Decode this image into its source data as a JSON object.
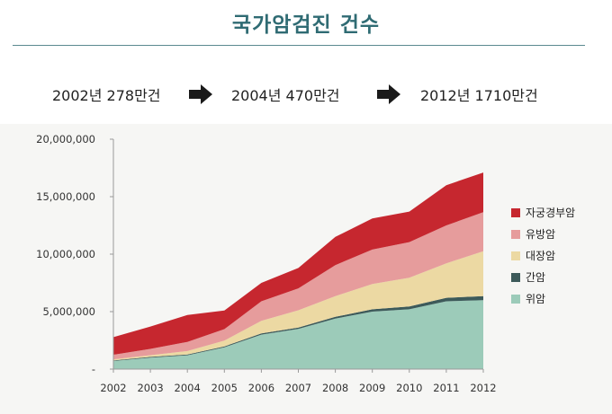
{
  "page": {
    "title": "국가암검진 건수"
  },
  "summary": {
    "items": [
      "2002년 278만건",
      "2004년 470만건",
      "2012년 1710만건"
    ]
  },
  "chart_data": {
    "type": "area",
    "stacked": true,
    "categories": [
      "2002",
      "2003",
      "2004",
      "2005",
      "2006",
      "2007",
      "2008",
      "2009",
      "2010",
      "2011",
      "2012"
    ],
    "ylim": [
      0,
      20000000
    ],
    "ytick_labels": [
      "-",
      "5,000,000",
      "10,000,000",
      "15,000,000",
      "20,000,000"
    ],
    "grid": false,
    "legend_position": "right",
    "series": [
      {
        "name": "위암",
        "color": "#9ccbb9",
        "values": [
          700000,
          1000000,
          1200000,
          1900000,
          3000000,
          3500000,
          4400000,
          5000000,
          5200000,
          5900000,
          6000000
        ]
      },
      {
        "name": "간암",
        "color": "#3d5a5a",
        "values": [
          50000,
          60000,
          70000,
          80000,
          100000,
          120000,
          150000,
          200000,
          250000,
          300000,
          350000
        ]
      },
      {
        "name": "대장암",
        "color": "#ecd9a3",
        "values": [
          100000,
          150000,
          300000,
          500000,
          1100000,
          1500000,
          1800000,
          2200000,
          2500000,
          3000000,
          3900000
        ]
      },
      {
        "name": "유방암",
        "color": "#e69c9c",
        "values": [
          400000,
          550000,
          800000,
          1000000,
          1700000,
          1900000,
          2700000,
          3000000,
          3100000,
          3300000,
          3400000
        ]
      },
      {
        "name": "자궁경부암",
        "color": "#c6272f",
        "values": [
          1530000,
          1940000,
          2330000,
          1620000,
          1600000,
          1780000,
          2450000,
          2700000,
          2650000,
          3500000,
          3450000
        ]
      }
    ],
    "legend_order": [
      "자궁경부암",
      "유방암",
      "대장암",
      "간암",
      "위암"
    ]
  }
}
